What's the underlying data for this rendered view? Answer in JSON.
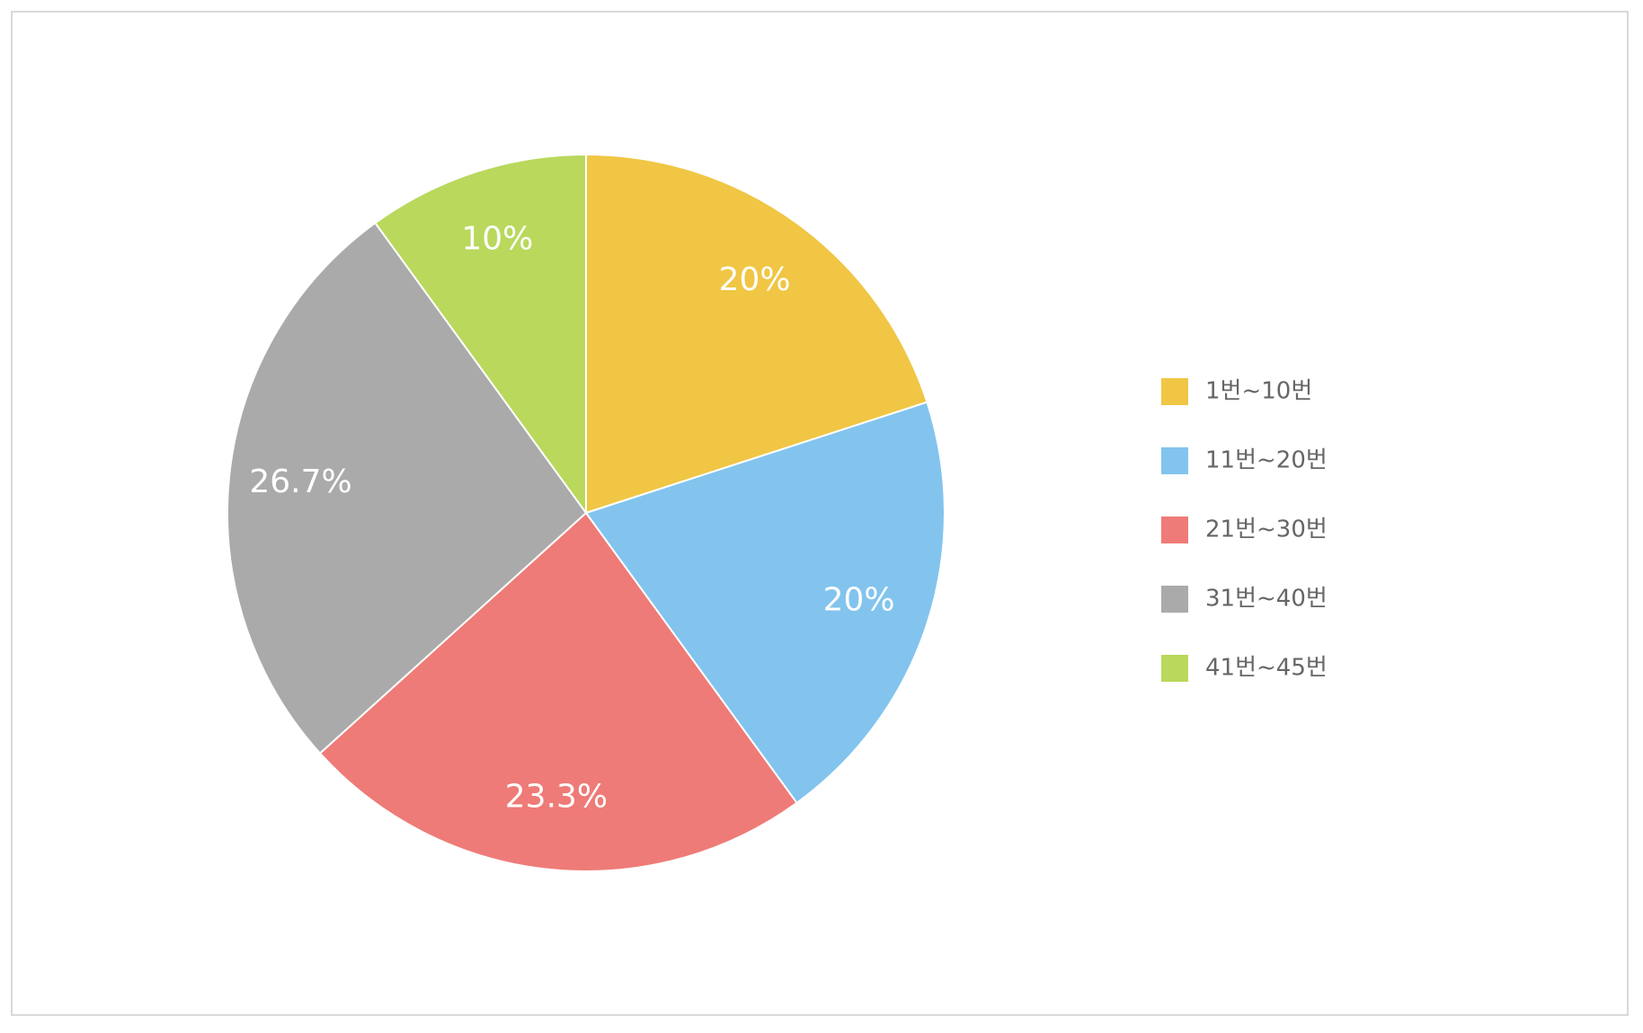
{
  "chart_data": {
    "type": "pie",
    "categories": [
      "1번~10번",
      "11번~20번",
      "21번~30번",
      "31번~40번",
      "41번~45번"
    ],
    "values": [
      20,
      20,
      23.3,
      26.7,
      10
    ],
    "value_labels": [
      "20%",
      "20%",
      "23.3%",
      "26.7%",
      "10%"
    ],
    "colors": [
      "#f0c644",
      "#82c4ee",
      "#ee7b77",
      "#aaaaaa",
      "#b9d85c"
    ],
    "legend": "right"
  }
}
